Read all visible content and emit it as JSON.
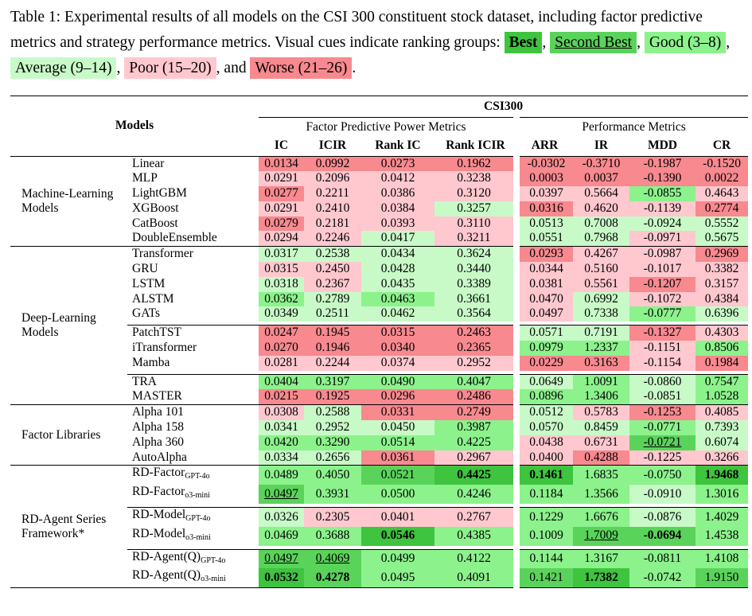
{
  "caption": {
    "prefix": "Table 1: Experimental results of all models on the CSI 300 constituent stock dataset, including factor predictive metrics and strategy performance metrics. Visual cues indicate ranking groups: ",
    "cues": {
      "best": "Best",
      "second": "Second Best",
      "good": "Good (3–8)",
      "avg": "Average (9–14)",
      "poor": "Poor (15–20)",
      "worse": "Worse (21–26)"
    },
    "and": ", and"
  },
  "header": {
    "models": "Models",
    "dataset": "CSI300",
    "group1": "Factor Predictive Power Metrics",
    "group2": "Performance Metrics",
    "columns": [
      "IC",
      "ICIR",
      "Rank IC",
      "Rank ICIR",
      "ARR",
      "IR",
      "MDD",
      "CR"
    ]
  },
  "colors": {
    "B": "#3ec43e",
    "S": "#5ad35a",
    "G": "#8cf28c",
    "A": "#c8fac8",
    "P": "#ffc8cf",
    "W": "#f7898f"
  },
  "groups": [
    {
      "name": "Machine-Learning Models",
      "blocks": [
        [
          {
            "model": "Linear",
            "values": [
              "0.0134",
              "0.0992",
              "0.0273",
              "0.1962",
              "-0.0302",
              "-0.3710",
              "-0.1987",
              "-0.1520"
            ],
            "cues": [
              "W",
              "W",
              "W",
              "W",
              "W",
              "W",
              "W",
              "W"
            ]
          },
          {
            "model": "MLP",
            "values": [
              "0.0291",
              "0.2096",
              "0.0412",
              "0.3238",
              "0.0003",
              "0.0037",
              "-0.1390",
              "0.0022"
            ],
            "cues": [
              "P",
              "P",
              "P",
              "P",
              "W",
              "W",
              "W",
              "W"
            ]
          },
          {
            "model": "LightGBM",
            "values": [
              "0.0277",
              "0.2211",
              "0.0386",
              "0.3120",
              "0.0397",
              "0.5664",
              "-0.0855",
              "0.4643"
            ],
            "cues": [
              "W",
              "P",
              "P",
              "P",
              "P",
              "P",
              "G",
              "P"
            ]
          },
          {
            "model": "XGBoost",
            "values": [
              "0.0291",
              "0.2410",
              "0.0384",
              "0.3257",
              "0.0316",
              "0.4620",
              "-0.1139",
              "0.2774"
            ],
            "cues": [
              "P",
              "P",
              "P",
              "A",
              "W",
              "P",
              "P",
              "W"
            ]
          },
          {
            "model": "CatBoost",
            "values": [
              "0.0279",
              "0.2181",
              "0.0393",
              "0.3110",
              "0.0513",
              "0.7008",
              "-0.0924",
              "0.5552"
            ],
            "cues": [
              "W",
              "P",
              "P",
              "P",
              "A",
              "A",
              "A",
              "A"
            ]
          },
          {
            "model": "DoubleEnsemble",
            "values": [
              "0.0294",
              "0.2246",
              "0.0417",
              "0.3211",
              "0.0551",
              "0.7968",
              "-0.0971",
              "0.5675"
            ],
            "cues": [
              "P",
              "P",
              "A",
              "P",
              "A",
              "A",
              "P",
              "A"
            ]
          }
        ]
      ]
    },
    {
      "name": "Deep-Learning Models",
      "blocks": [
        [
          {
            "model": "Transformer",
            "values": [
              "0.0317",
              "0.2538",
              "0.0434",
              "0.3624",
              "0.0293",
              "0.4267",
              "-0.0987",
              "0.2969"
            ],
            "cues": [
              "A",
              "A",
              "A",
              "A",
              "W",
              "P",
              "P",
              "W"
            ]
          },
          {
            "model": "GRU",
            "values": [
              "0.0315",
              "0.2450",
              "0.0428",
              "0.3440",
              "0.0344",
              "0.5160",
              "-0.1017",
              "0.3382"
            ],
            "cues": [
              "P",
              "P",
              "A",
              "A",
              "P",
              "P",
              "P",
              "P"
            ]
          },
          {
            "model": "LSTM",
            "values": [
              "0.0318",
              "0.2367",
              "0.0435",
              "0.3389",
              "0.0381",
              "0.5561",
              "-0.1207",
              "0.3157"
            ],
            "cues": [
              "A",
              "P",
              "A",
              "A",
              "P",
              "P",
              "W",
              "P"
            ]
          },
          {
            "model": "ALSTM",
            "values": [
              "0.0362",
              "0.2789",
              "0.0463",
              "0.3661",
              "0.0470",
              "0.6992",
              "-0.1072",
              "0.4384"
            ],
            "cues": [
              "G",
              "A",
              "G",
              "A",
              "P",
              "A",
              "P",
              "P"
            ]
          },
          {
            "model": "GATs",
            "values": [
              "0.0349",
              "0.2511",
              "0.0462",
              "0.3564",
              "0.0497",
              "0.7338",
              "-0.0777",
              "0.6396"
            ],
            "cues": [
              "A",
              "A",
              "A",
              "A",
              "P",
              "A",
              "G",
              "A"
            ]
          }
        ],
        [
          {
            "model": "PatchTST",
            "values": [
              "0.0247",
              "0.1945",
              "0.0315",
              "0.2463",
              "0.0571",
              "0.7191",
              "-0.1327",
              "0.4303"
            ],
            "cues": [
              "W",
              "W",
              "W",
              "W",
              "A",
              "A",
              "W",
              "P"
            ]
          },
          {
            "model": "iTransformer",
            "values": [
              "0.0270",
              "0.1946",
              "0.0340",
              "0.2365",
              "0.0979",
              "1.2337",
              "-0.1151",
              "0.8506"
            ],
            "cues": [
              "W",
              "W",
              "W",
              "W",
              "G",
              "G",
              "P",
              "G"
            ]
          },
          {
            "model": "Mamba",
            "values": [
              "0.0281",
              "0.2244",
              "0.0374",
              "0.2952",
              "0.0229",
              "0.3163",
              "-0.1154",
              "0.1984"
            ],
            "cues": [
              "P",
              "P",
              "P",
              "P",
              "W",
              "W",
              "P",
              "W"
            ]
          }
        ],
        [
          {
            "model": "TRA",
            "values": [
              "0.0404",
              "0.3197",
              "0.0490",
              "0.4047",
              "0.0649",
              "1.0091",
              "-0.0860",
              "0.7547"
            ],
            "cues": [
              "G",
              "G",
              "G",
              "G",
              "A",
              "G",
              "A",
              "G"
            ]
          },
          {
            "model": "MASTER",
            "values": [
              "0.0215",
              "0.1925",
              "0.0296",
              "0.2486",
              "0.0896",
              "1.3406",
              "-0.0851",
              "1.0528"
            ],
            "cues": [
              "W",
              "W",
              "W",
              "W",
              "G",
              "G",
              "A",
              "G"
            ]
          }
        ]
      ]
    },
    {
      "name": "Factor Libraries",
      "blocks": [
        [
          {
            "model": "Alpha 101",
            "values": [
              "0.0308",
              "0.2588",
              "0.0331",
              "0.2749",
              "0.0512",
              "0.5783",
              "-0.1253",
              "0.4085"
            ],
            "cues": [
              "P",
              "A",
              "W",
              "W",
              "A",
              "P",
              "W",
              "P"
            ]
          },
          {
            "model": "Alpha 158",
            "values": [
              "0.0341",
              "0.2952",
              "0.0450",
              "0.3987",
              "0.0570",
              "0.8459",
              "-0.0771",
              "0.7393"
            ],
            "cues": [
              "A",
              "A",
              "A",
              "G",
              "A",
              "A",
              "G",
              "A"
            ]
          },
          {
            "model": "Alpha 360",
            "values": [
              "0.0420",
              "0.3290",
              "0.0514",
              "0.4225",
              "0.0438",
              "0.6731",
              "-0.0721",
              "0.6074"
            ],
            "cues": [
              "G",
              "G",
              "G",
              "G",
              "P",
              "P",
              "Su",
              "A"
            ]
          },
          {
            "model": "AutoAlpha",
            "values": [
              "0.0334",
              "0.2656",
              "0.0361",
              "0.2967",
              "0.0400",
              "0.4288",
              "-0.1225",
              "0.3266"
            ],
            "cues": [
              "A",
              "A",
              "W",
              "P",
              "P",
              "W",
              "P",
              "P"
            ]
          }
        ]
      ]
    },
    {
      "name": "RD-Agent Series Framework*",
      "blocks": [
        [
          {
            "model": "RD-Factor",
            "sub": "GPT-4o",
            "values": [
              "0.0489",
              "0.4050",
              "0.0521",
              "0.4425",
              "0.1461",
              "1.6835",
              "-0.0750",
              "1.9468"
            ],
            "cues": [
              "G",
              "G",
              "S",
              "Bb",
              "Bb",
              "G",
              "G",
              "Bb"
            ]
          },
          {
            "model": "RD-Factor",
            "sub": "o3-mini",
            "values": [
              "0.0497",
              "0.3931",
              "0.0500",
              "0.4246",
              "0.1184",
              "1.3566",
              "-0.0910",
              "1.3016"
            ],
            "cues": [
              "Su",
              "G",
              "G",
              "G",
              "G",
              "G",
              "A",
              "G"
            ]
          }
        ],
        [
          {
            "model": "RD-Model",
            "sub": "GPT-4o",
            "values": [
              "0.0326",
              "0.2305",
              "0.0401",
              "0.2767",
              "0.1229",
              "1.6676",
              "-0.0876",
              "1.4029"
            ],
            "cues": [
              "A",
              "P",
              "P",
              "P",
              "G",
              "G",
              "A",
              "G"
            ]
          },
          {
            "model": "RD-Model",
            "sub": "o3-mini",
            "values": [
              "0.0469",
              "0.3688",
              "0.0546",
              "0.4385",
              "0.1009",
              "1.7009",
              "-0.0694",
              "1.4538"
            ],
            "cues": [
              "G",
              "G",
              "Bb",
              "G",
              "G",
              "Su",
              "Sb",
              "G"
            ]
          }
        ],
        [
          {
            "model": "RD-Agent(Q)",
            "sub": "GPT-4o",
            "values": [
              "0.0497",
              "0.4069",
              "0.0499",
              "0.4122",
              "0.1144",
              "1.3167",
              "-0.0811",
              "1.4108"
            ],
            "cues": [
              "Su",
              "Su",
              "G",
              "G",
              "G",
              "G",
              "G",
              "G"
            ]
          },
          {
            "model": "RD-Agent(Q)",
            "sub": "o3-mini",
            "values": [
              "0.0532",
              "0.4278",
              "0.0495",
              "0.4091",
              "0.1421",
              "1.7382",
              "-0.0742",
              "1.9150"
            ],
            "cues": [
              "Bb",
              "Sb",
              "G",
              "G",
              "S",
              "Bb",
              "G",
              "S"
            ]
          }
        ]
      ]
    }
  ]
}
